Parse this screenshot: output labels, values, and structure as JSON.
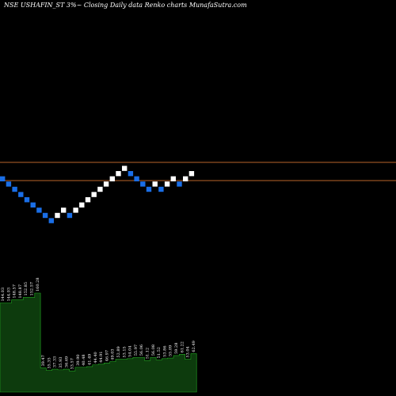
{
  "chart_data": {
    "type": "renko",
    "title": "NSE USHAFIN_ST 3%~  Closing Daily data Renko  charts MunafaSutra.com",
    "bricks": [
      {
        "d": "down",
        "c": "#1a6ee6"
      },
      {
        "d": "down",
        "c": "#1a6ee6"
      },
      {
        "d": "down",
        "c": "#1a6ee6"
      },
      {
        "d": "down",
        "c": "#1a6ee6"
      },
      {
        "d": "down",
        "c": "#1a6ee6"
      },
      {
        "d": "down",
        "c": "#1a6ee6"
      },
      {
        "d": "down",
        "c": "#1a6ee6"
      },
      {
        "d": "down",
        "c": "#1a6ee6"
      },
      {
        "d": "down",
        "c": "#1a6ee6"
      },
      {
        "d": "up",
        "c": "#ffffff"
      },
      {
        "d": "up",
        "c": "#ffffff"
      },
      {
        "d": "down",
        "c": "#1a6ee6"
      },
      {
        "d": "up",
        "c": "#ffffff"
      },
      {
        "d": "up",
        "c": "#ffffff"
      },
      {
        "d": "up",
        "c": "#ffffff"
      },
      {
        "d": "up",
        "c": "#ffffff"
      },
      {
        "d": "up",
        "c": "#ffffff"
      },
      {
        "d": "up",
        "c": "#ffffff"
      },
      {
        "d": "up",
        "c": "#ffffff"
      },
      {
        "d": "up",
        "c": "#ffffff"
      },
      {
        "d": "up",
        "c": "#ffffff"
      },
      {
        "d": "down",
        "c": "#1a6ee6"
      },
      {
        "d": "down",
        "c": "#1a6ee6"
      },
      {
        "d": "down",
        "c": "#1a6ee6"
      },
      {
        "d": "down",
        "c": "#1a6ee6"
      },
      {
        "d": "up",
        "c": "#ffffff"
      },
      {
        "d": "down",
        "c": "#1a6ee6"
      },
      {
        "d": "up",
        "c": "#ffffff"
      },
      {
        "d": "up",
        "c": "#ffffff"
      },
      {
        "d": "down",
        "c": "#1a6ee6"
      },
      {
        "d": "up",
        "c": "#ffffff"
      },
      {
        "d": "up",
        "c": "#ffffff"
      }
    ],
    "reference_lines": [
      {
        "color": "#b8642a"
      },
      {
        "color": "#b8642a"
      }
    ],
    "volume_labels": [
      "144.03",
      "144.03",
      "148.57",
      "148.87",
      "152.85",
      "152.57",
      "160.28",
      "39.47",
      "35.35",
      "37.33",
      "35.93",
      "36.69",
      "33.57",
      "39.90",
      "40.48",
      "41.49",
      "44.40",
      "44.91",
      "46.97",
      "49.03",
      "52.89",
      "53.15",
      "54.04",
      "55.97",
      "56.06",
      "51.12",
      "56.08",
      "51.52",
      "53.86",
      "55.09",
      "59.28",
      "61.22",
      "53.04",
      "62.49"
    ],
    "volume_values": [
      144,
      144,
      149,
      149,
      153,
      153,
      160,
      39,
      35,
      37,
      36,
      37,
      34,
      40,
      40,
      41,
      44,
      45,
      47,
      49,
      53,
      53,
      54,
      56,
      56,
      51,
      56,
      52,
      54,
      55,
      59,
      61,
      53,
      62
    ],
    "colors": {
      "background": "#000000",
      "up_brick": "#ffffff",
      "down_brick": "#1a6ee6",
      "reference_line": "#b8642a",
      "volume_fill": "#0d3b0d",
      "volume_edge": "#22aa22",
      "text": "#ffffff"
    }
  }
}
